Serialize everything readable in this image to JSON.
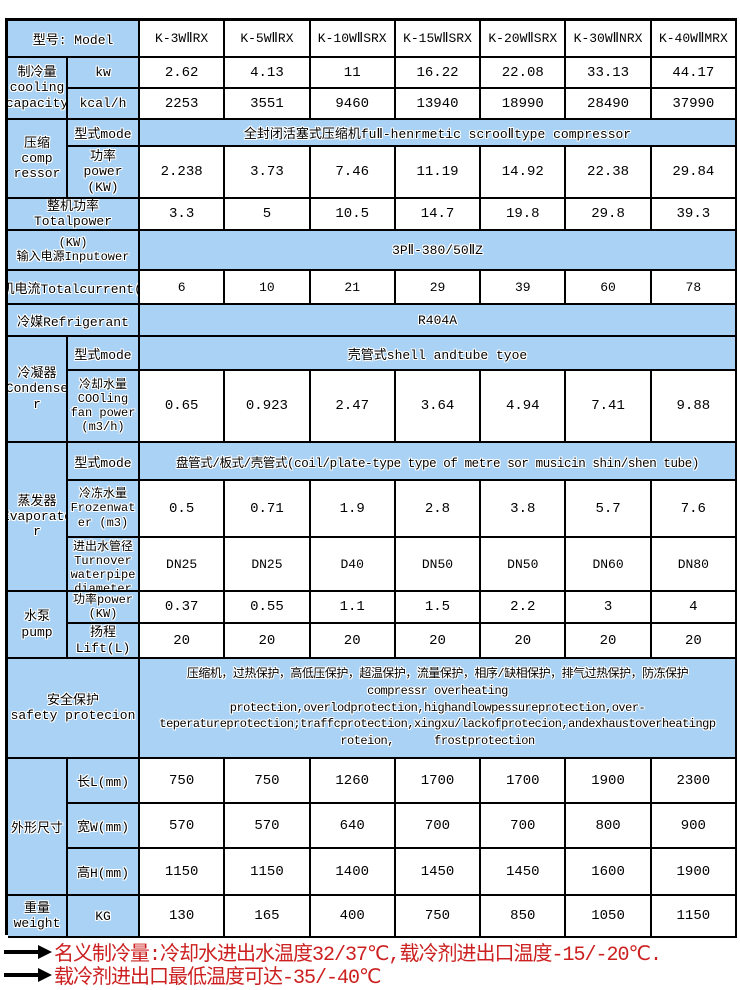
{
  "colors": {
    "cell_blue": "#a9d2f5",
    "border_black": "#000000",
    "note_red": "#cc2020",
    "value_bg": "#ffffff"
  },
  "table": {
    "model_header": "型号: Model",
    "models": [
      "K-3WⅡRX",
      "K-5WⅡRX",
      "K-10WⅡSRX",
      "K-15WⅡSRX",
      "K-20WⅡSRX",
      "K-30WⅡNRX",
      "K-40WⅡMRX"
    ],
    "cooling": {
      "group_label": "制冷量\ncooling\ncapacity",
      "kw_label": "kw",
      "kw_values": [
        "2.62",
        "4.13",
        "11",
        "16.22",
        "22.08",
        "33.13",
        "44.17"
      ],
      "kcal_label": "kcal/h",
      "kcal_values": [
        "2253",
        "3551",
        "9460",
        "13940",
        "18990",
        "28490",
        "37990"
      ]
    },
    "compressor": {
      "group_label": "压缩\ncomp\nressor",
      "mode_label": "型式mode",
      "mode_value": "全封闭活塞式压缩机fuⅡ-henrmetic scrooⅡtype compressor",
      "power_label": "功率\npower\n(KW)",
      "power_values": [
        "2.238",
        "3.73",
        "7.46",
        "11.19",
        "14.92",
        "22.38",
        "29.84"
      ]
    },
    "total_power": {
      "label": "整机功率\nTotalpower",
      "values": [
        "3.3",
        "5",
        "10.5",
        "14.7",
        "19.8",
        "29.8",
        "39.3"
      ]
    },
    "input_power": {
      "label": "(KW)\n输入电源Inputower",
      "value": "3PⅡ-380/50ⅡZ"
    },
    "total_current": {
      "label": "整机电流Totalcurrent(A)",
      "values": [
        "6",
        "10",
        "21",
        "29",
        "39",
        "60",
        "78"
      ]
    },
    "refrigerant": {
      "label": "冷媒Refrigerant",
      "value": "R404A"
    },
    "condenser": {
      "group_label": "冷凝器\nCondense\nr",
      "mode_label": "型式mode",
      "mode_value": "壳管式shell andtube tyoe",
      "water_label": "冷却水量\nCOOling\nfan power\n(m3/h)",
      "water_values": [
        "0.65",
        "0.923",
        "2.47",
        "3.64",
        "4.94",
        "7.41",
        "9.88"
      ]
    },
    "evaporator": {
      "group_label": "蒸发器\nEvaporato\nr",
      "mode_label": "型式mode",
      "mode_value": "盘管式/板式/壳管式(coil/plate-type type of metre sor musicin shin/shen tube)",
      "frozen_label": "冷冻水量\nFrozenwat\ner (m3)",
      "frozen_values": [
        "0.5",
        "0.71",
        "1.9",
        "2.8",
        "3.8",
        "5.7",
        "7.6"
      ],
      "pipe_label": "进出水管径\nTurnover\nwaterpipe\ndiameter",
      "pipe_values": [
        "DN25",
        "DN25",
        "D40",
        "DN50",
        "DN50",
        "DN60",
        "DN80"
      ]
    },
    "pump": {
      "group_label": "水泵\npump",
      "power_label": "功率power\n(KW)",
      "power_values": [
        "0.37",
        "0.55",
        "1.1",
        "1.5",
        "2.2",
        "3",
        "4"
      ],
      "lift_label": "扬程\nLift(L)",
      "lift_values": [
        "20",
        "20",
        "20",
        "20",
        "20",
        "20",
        "20"
      ]
    },
    "safety": {
      "label": "安全保护\nsafety protecion",
      "value": "压缩机，过热保护，高低压保护，超温保护，流量保护，相序/缺相保护，排气过热保护，防冻保护\ncompressr overheating\nprotection,overlodprotection,highandlowpessureprotection,over-\nteperatureprotection;traffcprotection,xingxu/lackofprotecion,andexhaustoverheatingp\nroteion,      frostprotection"
    },
    "dimensions": {
      "group_label": "外形尺寸",
      "length_label": "长L(mm)",
      "length_values": [
        "750",
        "750",
        "1260",
        "1700",
        "1700",
        "1900",
        "2300"
      ],
      "width_label": "宽W(mm)",
      "width_values": [
        "570",
        "570",
        "640",
        "700",
        "700",
        "800",
        "900"
      ],
      "height_label": "高H(mm)",
      "height_values": [
        "1150",
        "1150",
        "1400",
        "1450",
        "1450",
        "1600",
        "1900"
      ]
    },
    "weight": {
      "group_label": "重量\nweight",
      "unit_label": "KG",
      "values": [
        "130",
        "165",
        "400",
        "750",
        "850",
        "1050",
        "1150"
      ]
    }
  },
  "notes": [
    "名义制冷量:冷却水进出水温度32/37℃,载冷剂进出口温度-15/-20℃.",
    "载冷剂进出口最低温度可达-35/-40℃"
  ]
}
